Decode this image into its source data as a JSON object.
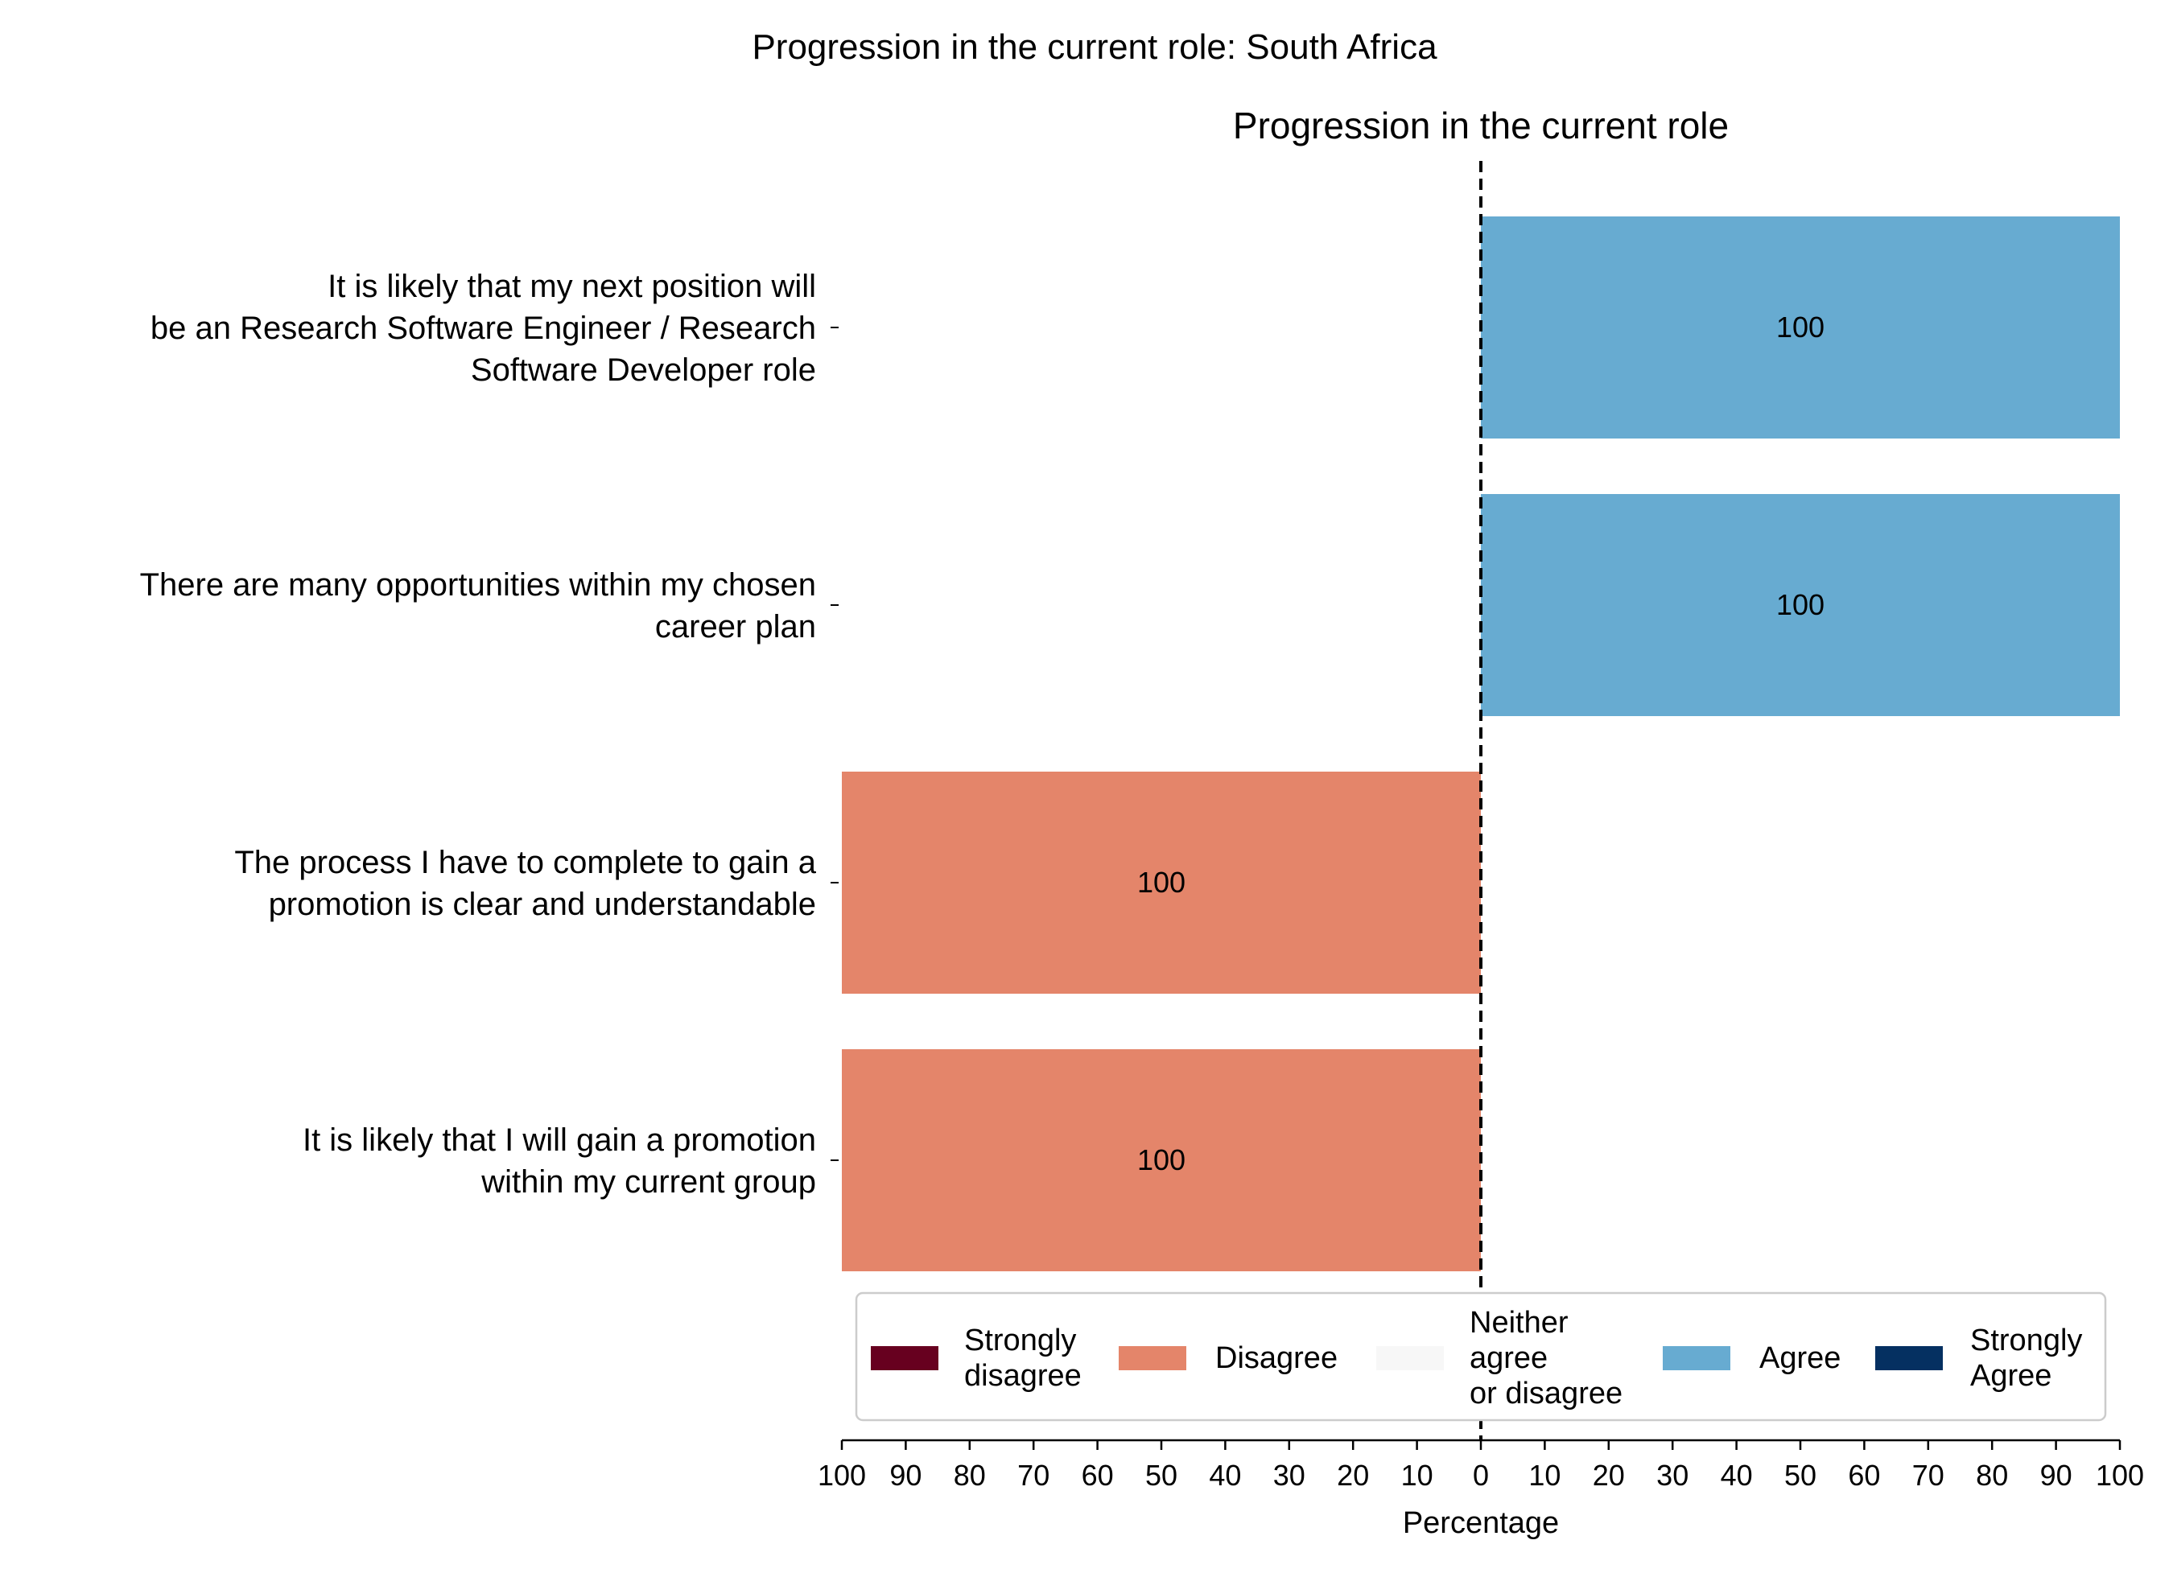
{
  "chart_data": {
    "type": "bar",
    "orientation": "horizontal-diverging",
    "suptitle": "Progression in the current role: South Africa",
    "title": "Progression in the current role",
    "xlabel": "Percentage",
    "xlim": [
      -100,
      100
    ],
    "xticks": [
      -100,
      -90,
      -80,
      -70,
      -60,
      -50,
      -40,
      -30,
      -20,
      -10,
      0,
      10,
      20,
      30,
      40,
      50,
      60,
      70,
      80,
      90,
      100
    ],
    "xtick_labels": [
      "100",
      "90",
      "80",
      "70",
      "60",
      "50",
      "40",
      "30",
      "20",
      "10",
      "0",
      "10",
      "20",
      "30",
      "40",
      "50",
      "60",
      "70",
      "80",
      "90",
      "100"
    ],
    "grid": false,
    "legend_position": "bottom-inside",
    "categories": [
      [
        "It is likely that my next position will",
        "be an Research Software Engineer / Research",
        "Software Developer role"
      ],
      [
        "There are many opportunities within my chosen",
        "career plan"
      ],
      [
        "The process I have to complete to gain a",
        "promotion is clear and understandable"
      ],
      [
        "It is likely that I will gain a promotion",
        "within my current group"
      ]
    ],
    "series": [
      {
        "name": "Strongly disagree",
        "legend_lines": [
          "Strongly",
          "disagree"
        ],
        "color": "#67001f",
        "values": [
          0,
          0,
          0,
          0
        ]
      },
      {
        "name": "Disagree",
        "legend_lines": [
          "Disagree"
        ],
        "color": "#e4856a",
        "values": [
          0,
          0,
          100,
          100
        ]
      },
      {
        "name": "Neither agree or disagree",
        "legend_lines": [
          "Neither",
          "agree",
          "or disagree"
        ],
        "color": "#f7f7f7",
        "values": [
          0,
          0,
          0,
          0
        ]
      },
      {
        "name": "Agree",
        "legend_lines": [
          "Agree"
        ],
        "color": "#67abd1",
        "values": [
          100,
          100,
          0,
          0
        ]
      },
      {
        "name": "Strongly Agree",
        "legend_lines": [
          "Strongly",
          "Agree"
        ],
        "color": "#053061",
        "values": [
          0,
          0,
          0,
          0
        ]
      }
    ],
    "data_labels": [
      "100",
      "100",
      "100",
      "100"
    ]
  }
}
